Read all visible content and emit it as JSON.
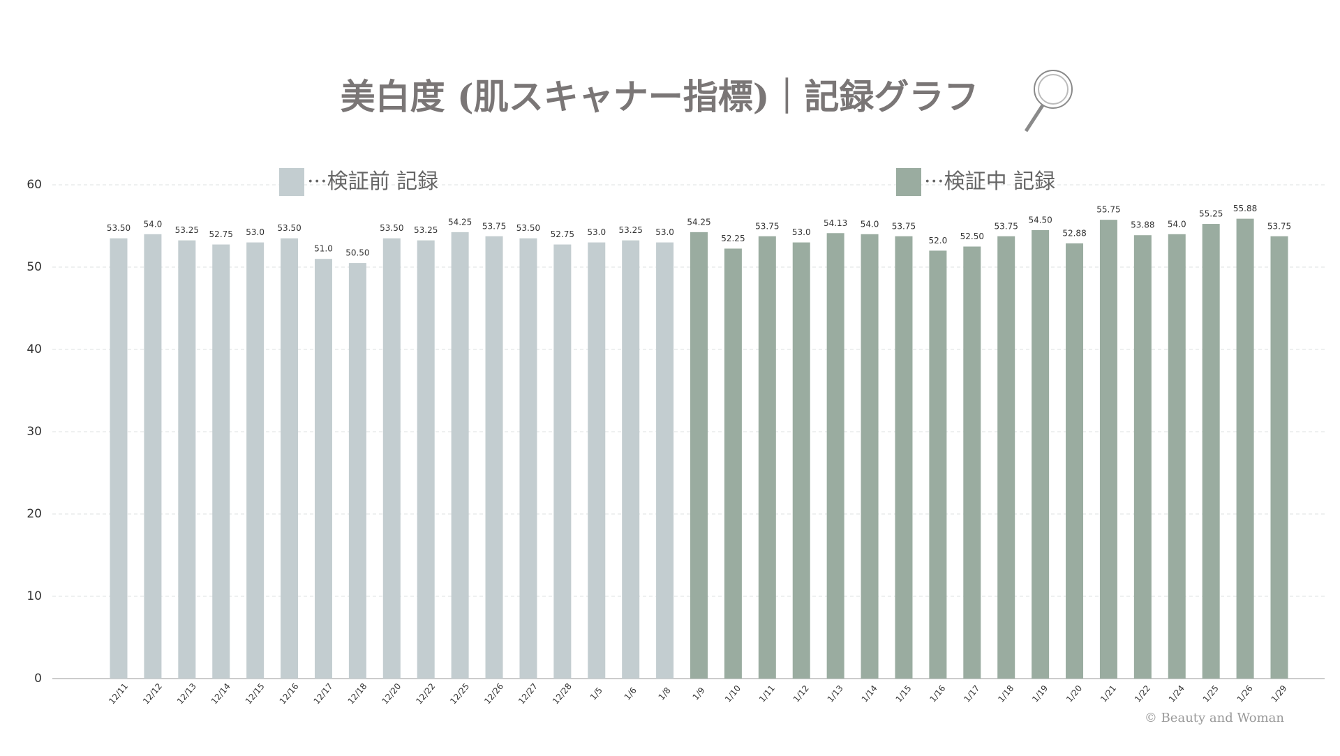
{
  "chart_data": {
    "type": "bar",
    "title": "美白度 (肌スキャナー指標)｜記録グラフ",
    "categories": [
      "12/11",
      "12/12",
      "12/13",
      "12/14",
      "12/15",
      "12/16",
      "12/17",
      "12/18",
      "12/20",
      "12/22",
      "12/25",
      "12/26",
      "12/27",
      "12/28",
      "1/5",
      "1/6",
      "1/8",
      "1/9",
      "1/10",
      "1/11",
      "1/12",
      "1/13",
      "1/14",
      "1/15",
      "1/16",
      "1/17",
      "1/18",
      "1/19",
      "1/20",
      "1/21",
      "1/22",
      "1/24",
      "1/25",
      "1/26",
      "1/29"
    ],
    "series": [
      {
        "name": "···検証前 記録",
        "color": "#c3cdd0",
        "values": [
          53.5,
          54,
          53.25,
          52.75,
          53,
          53.5,
          51,
          50.5,
          53.5,
          53.25,
          54.25,
          53.75,
          53.5,
          52.75,
          53,
          53.25,
          53,
          null,
          null,
          null,
          null,
          null,
          null,
          null,
          null,
          null,
          null,
          null,
          null,
          null,
          null,
          null,
          null,
          null,
          null
        ],
        "value_labels": [
          "53.50",
          "54.0",
          "53.25",
          "52.75",
          "53.0",
          "53.50",
          "51.0",
          "50.50",
          "53.50",
          "53.25",
          "54.25",
          "53.75",
          "53.50",
          "52.75",
          "53.0",
          "53.25",
          "53.0",
          null,
          null,
          null,
          null,
          null,
          null,
          null,
          null,
          null,
          null,
          null,
          null,
          null,
          null,
          null,
          null,
          null,
          null
        ]
      },
      {
        "name": "···検証中 記録",
        "color": "#9aaca0",
        "values": [
          null,
          null,
          null,
          null,
          null,
          null,
          null,
          null,
          null,
          null,
          null,
          null,
          null,
          null,
          null,
          null,
          null,
          54.25,
          52.25,
          53.75,
          53,
          54.13,
          54,
          53.75,
          52,
          52.5,
          53.75,
          54.5,
          52.88,
          55.75,
          53.88,
          54,
          55.25,
          55.88,
          53.75
        ],
        "value_labels": [
          null,
          null,
          null,
          null,
          null,
          null,
          null,
          null,
          null,
          null,
          null,
          null,
          null,
          null,
          null,
          null,
          null,
          "54.25",
          "52.25",
          "53.75",
          "53.0",
          "54.13",
          "54.0",
          "53.75",
          "52.0",
          "52.50",
          "53.75",
          "54.50",
          "52.88",
          "55.75",
          "53.88",
          "54.0",
          "55.25",
          "55.88",
          "53.75"
        ]
      }
    ],
    "ylim": [
      0,
      60
    ],
    "yticks": [
      0,
      10,
      20,
      30,
      40,
      50,
      60
    ],
    "grid": true,
    "copyright": "© Beauty and Woman"
  }
}
